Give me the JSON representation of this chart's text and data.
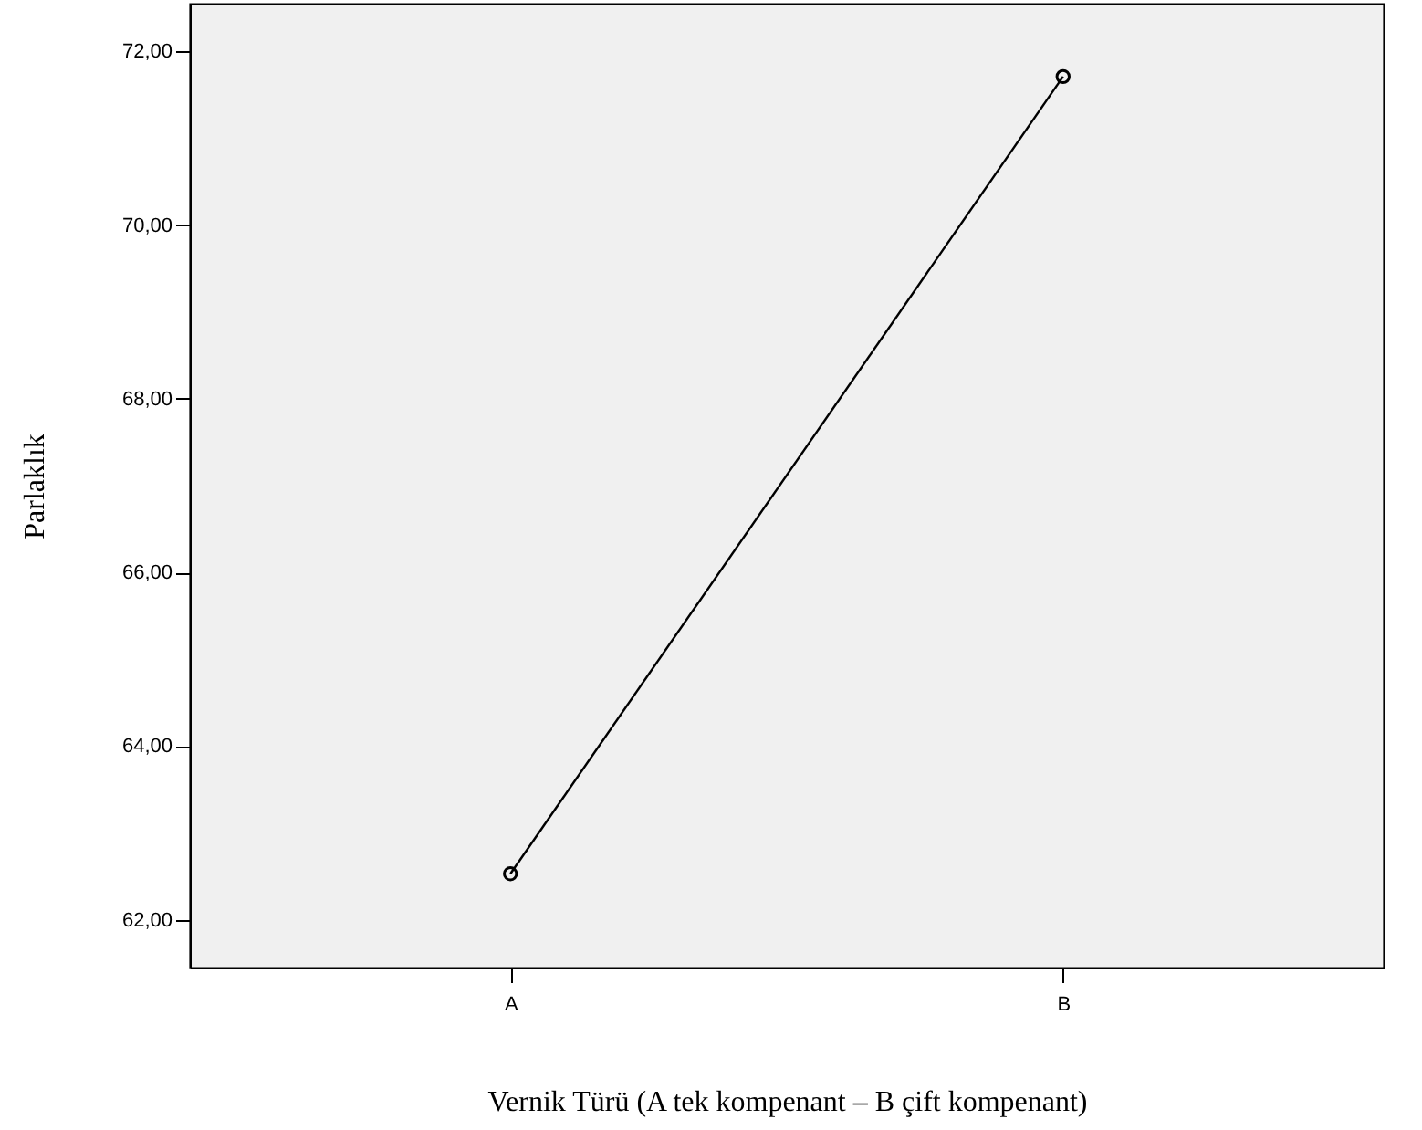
{
  "chart_data": {
    "type": "line",
    "xlabel": "Vernik Türü (A tek kompenant – B çift kompenant)",
    "ylabel": "Parlaklık",
    "categories": [
      "A",
      "B"
    ],
    "series": [
      {
        "color": "#000000",
        "values": [
          62.53,
          71.71
        ]
      }
    ],
    "ylim": [
      61.45,
      72.55
    ],
    "yticks": [
      {
        "value": 62,
        "label": "62,00"
      },
      {
        "value": 64,
        "label": "64,00"
      },
      {
        "value": 66,
        "label": "66,00"
      },
      {
        "value": 68,
        "label": "68,00"
      },
      {
        "value": 70,
        "label": "70,00"
      },
      {
        "value": 72,
        "label": "72,00"
      }
    ],
    "grid": false,
    "marker": "circle",
    "line_style": "solid"
  }
}
